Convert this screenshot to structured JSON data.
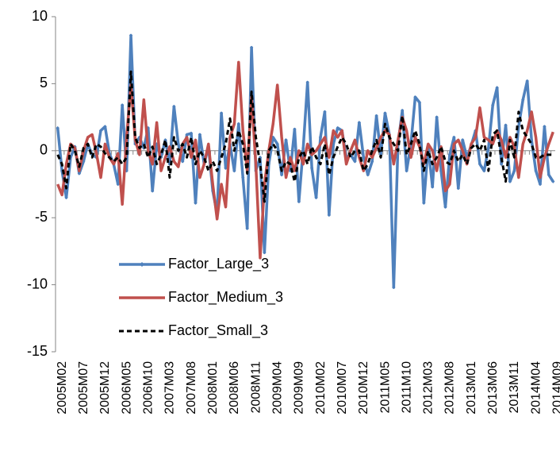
{
  "chart_data": {
    "type": "line",
    "categories": [
      "2005M02",
      null,
      null,
      null,
      null,
      "2005M07",
      null,
      null,
      null,
      null,
      "2005M12",
      null,
      null,
      null,
      null,
      "2006M05",
      null,
      null,
      null,
      null,
      "2006M10",
      null,
      null,
      null,
      null,
      "2007M03",
      null,
      null,
      null,
      null,
      "2007M08",
      null,
      null,
      null,
      null,
      "2008M01",
      null,
      null,
      null,
      null,
      "2008M06",
      null,
      null,
      null,
      null,
      "2008M11",
      null,
      null,
      null,
      null,
      "2009M04",
      null,
      null,
      null,
      null,
      "2009M09",
      null,
      null,
      null,
      null,
      "2010M02",
      null,
      null,
      null,
      null,
      "2010M07",
      null,
      null,
      null,
      null,
      "2010M12",
      null,
      null,
      null,
      null,
      "2011M05",
      null,
      null,
      null,
      null,
      "2011M10",
      null,
      null,
      null,
      null,
      "2012M03",
      null,
      null,
      null,
      null,
      "2012M08",
      null,
      null,
      null,
      null,
      "2013M01",
      null,
      null,
      null,
      null,
      "2013M06",
      null,
      null,
      null,
      null,
      "2013M11",
      null,
      null,
      null,
      null,
      "2014M04",
      null,
      null,
      null,
      null,
      "2014M09"
    ],
    "series": [
      {
        "name": "Factor_Large_3",
        "color": "#4f81bd",
        "marker": "diamond",
        "dashed": false,
        "values": [
          1.7,
          -1.5,
          -3.5,
          -0.5,
          0.3,
          -1.7,
          -0.8,
          0.5,
          -0.3,
          -0.5,
          1.5,
          1.8,
          -0.2,
          -1.0,
          -2.5,
          3.4,
          -1.5,
          8.6,
          0.5,
          1.0,
          0.2,
          1.7,
          -3.0,
          0.5,
          -0.5,
          0.8,
          -1.0,
          3.3,
          0.5,
          -0.8,
          1.2,
          1.3,
          -3.9,
          1.2,
          -1.0,
          0.3,
          -3.0,
          -4.7,
          2.8,
          -1.3,
          0.5,
          -1.5,
          2.0,
          -2.0,
          -5.8,
          7.7,
          -1.5,
          -0.5,
          -7.6,
          -1.0,
          1.0,
          0.5,
          -1.8,
          0.8,
          -1.5,
          1.6,
          -3.8,
          0.2,
          5.1,
          -1.3,
          -3.5,
          1.0,
          2.9,
          -4.8,
          0.5,
          1.7,
          1.5,
          -0.5,
          -0.3,
          -0.8,
          2.1,
          -0.5,
          -1.8,
          -0.8,
          2.6,
          -0.3,
          2.8,
          1.2,
          -10.2,
          0.5,
          3.0,
          -1.5,
          0.5,
          4.0,
          3.6,
          -3.9,
          0.3,
          -2.7,
          2.5,
          -1.5,
          -4.2,
          -0.3,
          1.0,
          -2.8,
          0.8,
          -0.5,
          0.4,
          1.5,
          -1.0,
          -1.5,
          0.2,
          3.4,
          4.7,
          -1.0,
          1.9,
          -2.3,
          -1.5,
          1.8,
          3.8,
          5.2,
          0.8,
          -1.5,
          -2.5,
          1.8,
          -1.8,
          -2.3
        ]
      },
      {
        "name": "Factor_Medium_3",
        "color": "#c0504d",
        "marker": "none",
        "dashed": false,
        "values": [
          -2.5,
          -3.3,
          -1.0,
          0.5,
          0.2,
          -1.5,
          0.0,
          1.0,
          1.2,
          -0.2,
          -2.0,
          0.5,
          -0.5,
          -1.0,
          -0.2,
          -4.0,
          1.0,
          4.9,
          0.8,
          -0.3,
          3.8,
          0.0,
          -1.0,
          2.1,
          -1.5,
          -0.5,
          0.3,
          -0.8,
          -1.2,
          0.5,
          1.0,
          -0.5,
          0.8,
          -2.0,
          -1.0,
          0.5,
          -2.5,
          -5.1,
          -2.5,
          -4.2,
          1.0,
          2.0,
          6.6,
          1.5,
          -1.5,
          4.0,
          -1.0,
          -8.0,
          -2.5,
          0.0,
          2.0,
          4.9,
          1.0,
          -2.0,
          -0.5,
          -1.5,
          0.0,
          -1.0,
          0.5,
          -0.3,
          0.0,
          0.5,
          1.0,
          -0.5,
          1.5,
          1.0,
          1.5,
          -1.0,
          0.0,
          0.8,
          -0.5,
          -1.5,
          0.0,
          -0.5,
          0.2,
          1.0,
          1.5,
          1.2,
          -1.0,
          0.8,
          2.5,
          1.5,
          -0.5,
          1.0,
          0.3,
          -1.0,
          0.5,
          0.0,
          -1.5,
          0.3,
          -3.0,
          -2.5,
          0.5,
          0.8,
          0.0,
          -1.0,
          0.5,
          1.0,
          3.2,
          1.0,
          0.8,
          0.5,
          1.5,
          0.8,
          -0.5,
          1.0,
          0.3,
          -2.0,
          0.5,
          1.5,
          2.9,
          1.0,
          -2.0,
          -0.5,
          0.5,
          1.4
        ]
      },
      {
        "name": "Factor_Small_3",
        "color": "#000000",
        "marker": "none",
        "dashed": true,
        "values": [
          -0.3,
          -1.0,
          -2.8,
          0.5,
          0.0,
          -1.2,
          0.2,
          0.5,
          -0.5,
          0.5,
          0.3,
          -0.2,
          -0.5,
          -0.8,
          -0.5,
          -1.0,
          -0.5,
          5.9,
          1.0,
          0.2,
          0.5,
          -0.5,
          0.3,
          -1.0,
          -0.3,
          0.8,
          -2.0,
          1.0,
          0.0,
          0.5,
          -0.5,
          1.0,
          -1.0,
          0.0,
          -0.5,
          -1.5,
          -0.8,
          -1.5,
          -0.5,
          0.5,
          2.4,
          0.0,
          1.5,
          0.5,
          -1.7,
          4.4,
          1.0,
          -1.0,
          -3.8,
          0.0,
          0.5,
          0.0,
          -1.5,
          -0.8,
          -1.0,
          -2.3,
          -0.5,
          0.0,
          -1.0,
          0.3,
          -0.5,
          -1.0,
          0.5,
          -1.8,
          -0.5,
          0.3,
          1.0,
          0.5,
          -0.5,
          0.0,
          0.0,
          -1.5,
          -1.0,
          0.0,
          0.8,
          -0.5,
          2.0,
          1.0,
          0.5,
          0.0,
          2.6,
          -0.3,
          0.5,
          1.5,
          0.5,
          -1.5,
          0.0,
          -1.0,
          -0.5,
          0.3,
          -0.8,
          -1.0,
          0.0,
          -0.8,
          -0.3,
          -1.0,
          0.2,
          0.5,
          0.0,
          0.8,
          -1.5,
          1.2,
          1.5,
          -0.5,
          -2.3,
          0.8,
          -0.5,
          2.9,
          1.5,
          1.0,
          0.5,
          -0.5,
          -0.5,
          -0.3,
          -0.3,
          -0.3
        ]
      }
    ],
    "ylim": [
      -15,
      10
    ],
    "yticks": [
      -15,
      -10,
      -5,
      0,
      5,
      10
    ],
    "grid": false
  }
}
